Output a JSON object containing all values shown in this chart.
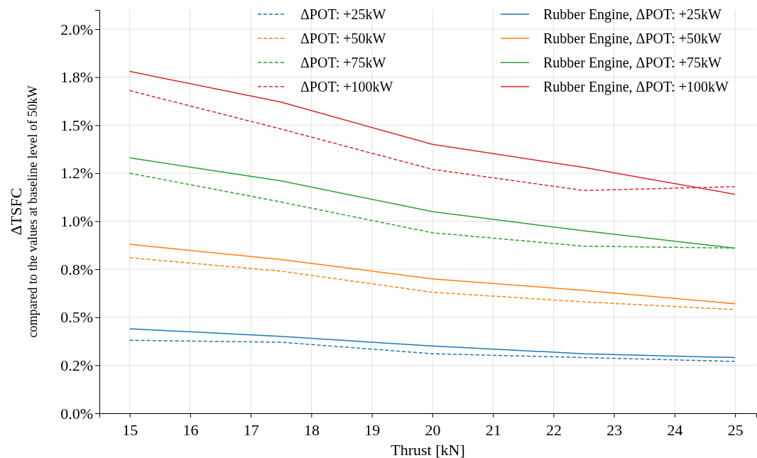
{
  "chart_data": {
    "type": "line",
    "xlabel": "Thrust [kN]",
    "ylabel": "ΔTSFC\ncompared to the values at baseline level of 50kW",
    "x": [
      15,
      17.5,
      20,
      22.5,
      25
    ],
    "xlim": [
      14.5,
      25.35
    ],
    "xticks": [
      15,
      16,
      17,
      18,
      19,
      20,
      21,
      22,
      23,
      24,
      25
    ],
    "ylim": [
      0,
      2.1
    ],
    "yticks": [
      {
        "value": 0,
        "label": "0.0%"
      },
      {
        "value": 0.25,
        "label": "0.2%"
      },
      {
        "value": 0.5,
        "label": "0.5%"
      },
      {
        "value": 0.75,
        "label": "0.8%"
      },
      {
        "value": 1.0,
        "label": "1.0%"
      },
      {
        "value": 1.25,
        "label": "1.2%"
      },
      {
        "value": 1.5,
        "label": "1.5%"
      },
      {
        "value": 1.75,
        "label": "1.8%"
      },
      {
        "value": 2.0,
        "label": "2.0%"
      }
    ],
    "grid": true,
    "legend": "top right",
    "marker": "none",
    "series": [
      {
        "name": "ΔPOT: +25kW",
        "color": "#1f77b4",
        "line_style": "dashed",
        "values": [
          0.38,
          0.37,
          0.31,
          0.29,
          0.27
        ]
      },
      {
        "name": "ΔPOT: +50kW",
        "color": "#ff7f0e",
        "line_style": "dashed",
        "values": [
          0.81,
          0.74,
          0.63,
          0.58,
          0.54
        ]
      },
      {
        "name": "ΔPOT: +75kW",
        "color": "#2ca02c",
        "line_style": "dashed",
        "values": [
          1.25,
          1.1,
          0.94,
          0.87,
          0.86
        ]
      },
      {
        "name": "ΔPOT: +100kW",
        "color": "#d62728",
        "line_style": "dashed",
        "values": [
          1.68,
          1.48,
          1.27,
          1.16,
          1.18
        ]
      },
      {
        "name": "Rubber Engine, ΔPOT: +25kW",
        "color": "#1f77b4",
        "line_style": "solid",
        "values": [
          0.44,
          0.4,
          0.35,
          0.31,
          0.29
        ]
      },
      {
        "name": "Rubber Engine, ΔPOT: +50kW",
        "color": "#ff7f0e",
        "line_style": "solid",
        "values": [
          0.88,
          0.8,
          0.7,
          0.64,
          0.57
        ]
      },
      {
        "name": "Rubber Engine, ΔPOT: +75kW",
        "color": "#2ca02c",
        "line_style": "solid",
        "values": [
          1.33,
          1.21,
          1.05,
          0.95,
          0.86
        ]
      },
      {
        "name": "Rubber Engine, ΔPOT: +100kW",
        "color": "#d62728",
        "line_style": "solid",
        "values": [
          1.78,
          1.62,
          1.4,
          1.28,
          1.14
        ]
      }
    ]
  }
}
